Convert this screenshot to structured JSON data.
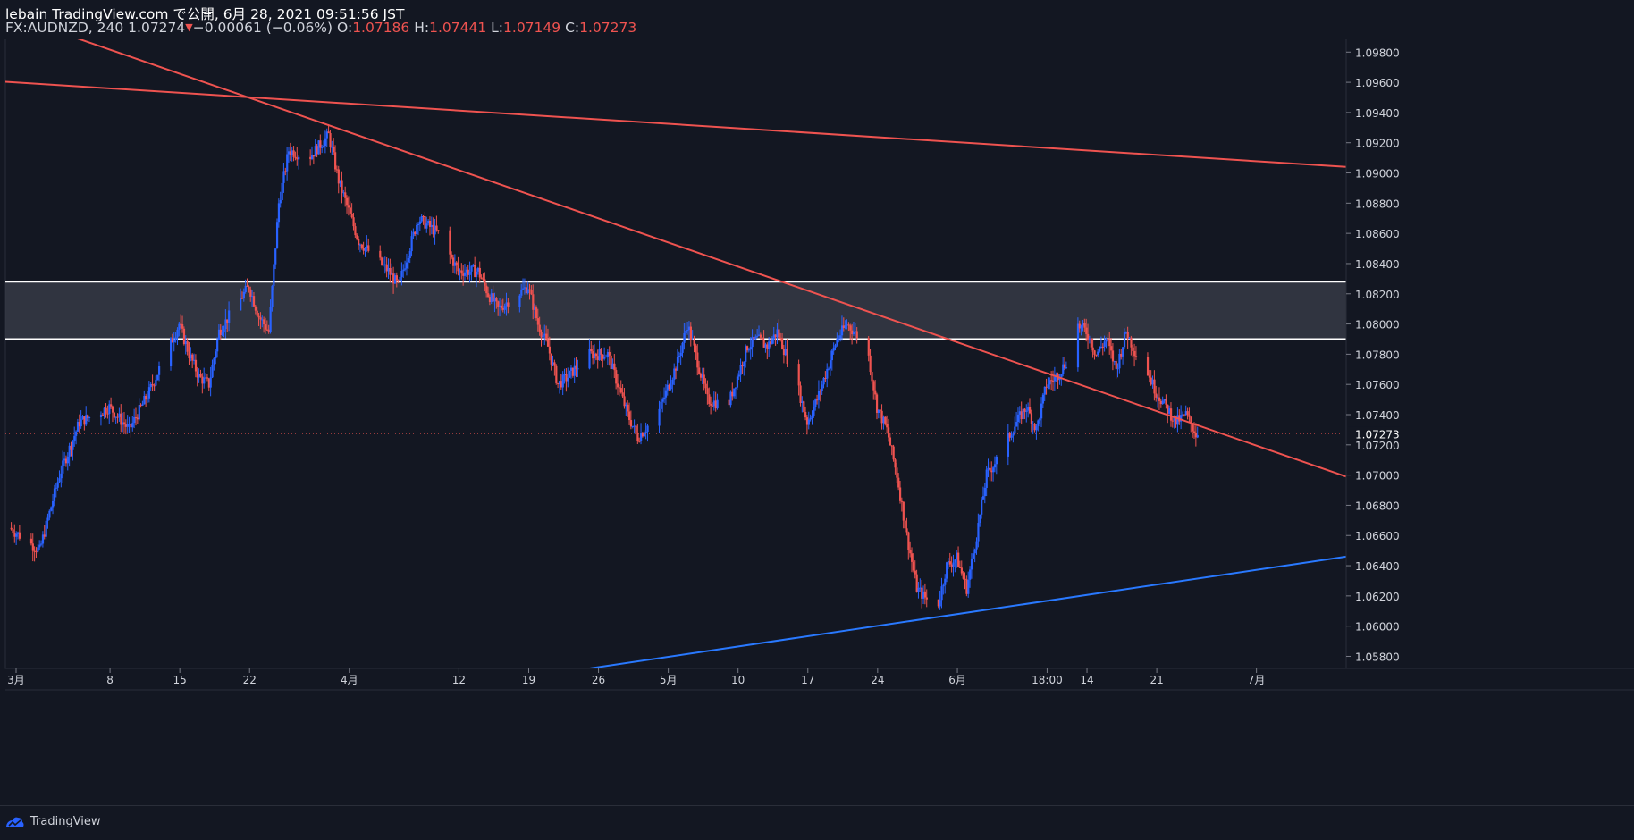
{
  "header": {
    "publish_line": "lebain TradingView.com で公開, 6月 28, 2021 09:51:56 JST",
    "symbol": "FX:AUDNZD, 240",
    "last": "1.07274",
    "arrow": "▼",
    "change": "−0.00061 (−0.06%)",
    "o_label": "O:",
    "o_val": "1.07186",
    "h_label": "H:",
    "h_val": "1.07441",
    "l_label": "L:",
    "l_val": "1.07149",
    "c_label": "C:",
    "c_val": "1.07273"
  },
  "footer": {
    "brand": "TradingView",
    "logo_icon": "tradingview-logo-icon"
  },
  "colors": {
    "background": "#131722",
    "bull": "#2962ff",
    "bear": "#ef5350",
    "zone_fill": "#363a45",
    "zone_line": "#ffffff",
    "trend_blue": "#2979ff",
    "trend_red": "#ef5350"
  },
  "chart_data": {
    "type": "candlestick",
    "symbol": "FX:AUDNZD",
    "interval": "240",
    "y_ticks": [
      "1.09800",
      "1.09600",
      "1.09400",
      "1.09200",
      "1.09000",
      "1.08800",
      "1.08600",
      "1.08400",
      "1.08200",
      "1.08000",
      "1.07800",
      "1.07600",
      "1.07400",
      "1.07200",
      "1.07000",
      "1.06800",
      "1.06600",
      "1.06400",
      "1.06200",
      "1.06000",
      "1.05800"
    ],
    "y_range": [
      1.0572,
      1.0992
    ],
    "x_ticks": [
      "3月",
      "8",
      "15",
      "22",
      "4月",
      "12",
      "19",
      "26",
      "5月",
      "10",
      "17",
      "24",
      "6月",
      "18:00",
      "14",
      "21",
      "7月"
    ],
    "last_price_label": "1.07273",
    "last_price": 1.07273,
    "zone": {
      "top": 1.0828,
      "bottom": 1.079
    },
    "trendlines": [
      {
        "color": "red",
        "from": {
          "date": "2021-02-24",
          "price": 1.0961
        },
        "to": {
          "date": "2021-07-10",
          "price": 1.0904
        }
      },
      {
        "color": "red",
        "from": {
          "date": "2021-03-03",
          "price": 1.0993
        },
        "to": {
          "date": "2021-07-10",
          "price": 1.0699
        }
      },
      {
        "color": "blue",
        "from": {
          "date": "2021-04-21",
          "price": 1.0568
        },
        "to": {
          "date": "2021-07-10",
          "price": 1.0646
        }
      }
    ],
    "price_path": [
      [
        "2021-02-26",
        1.0665
      ],
      [
        "2021-03-01",
        1.065
      ],
      [
        "2021-03-03",
        1.07
      ],
      [
        "2021-03-05",
        1.0735
      ],
      [
        "2021-03-08",
        1.0745
      ],
      [
        "2021-03-10",
        1.073
      ],
      [
        "2021-03-12",
        1.0755
      ],
      [
        "2021-03-15",
        1.08
      ],
      [
        "2021-03-16",
        1.078
      ],
      [
        "2021-03-17",
        1.0765
      ],
      [
        "2021-03-18",
        1.076
      ],
      [
        "2021-03-19",
        1.0795
      ],
      [
        "2021-03-22",
        1.0825
      ],
      [
        "2021-03-23",
        1.0805
      ],
      [
        "2021-03-24",
        1.0795
      ],
      [
        "2021-03-25",
        1.088
      ],
      [
        "2021-03-26",
        1.0915
      ],
      [
        "2021-03-28",
        1.091
      ],
      [
        "2021-03-30",
        1.0925
      ],
      [
        "2021-03-31",
        1.0895
      ],
      [
        "2021-04-01",
        1.0875
      ],
      [
        "2021-04-02",
        1.0855
      ],
      [
        "2021-04-05",
        1.0835
      ],
      [
        "2021-04-06",
        1.0825
      ],
      [
        "2021-04-08",
        1.087
      ],
      [
        "2021-04-10",
        1.086
      ],
      [
        "2021-04-12",
        1.0835
      ],
      [
        "2021-04-14",
        1.0835
      ],
      [
        "2021-04-15",
        1.082
      ],
      [
        "2021-04-16",
        1.081
      ],
      [
        "2021-04-19",
        1.0825
      ],
      [
        "2021-04-20",
        1.08
      ],
      [
        "2021-04-21",
        1.0785
      ],
      [
        "2021-04-22",
        1.076
      ],
      [
        "2021-04-23",
        1.0765
      ],
      [
        "2021-04-25",
        1.078
      ],
      [
        "2021-04-27",
        1.078
      ],
      [
        "2021-04-29",
        1.074
      ],
      [
        "2021-04-30",
        1.0725
      ],
      [
        "2021-05-02",
        1.074
      ],
      [
        "2021-05-04",
        1.0775
      ],
      [
        "2021-05-05",
        1.08
      ],
      [
        "2021-05-06",
        1.0775
      ],
      [
        "2021-05-07",
        1.075
      ],
      [
        "2021-05-09",
        1.0745
      ],
      [
        "2021-05-11",
        1.0785
      ],
      [
        "2021-05-12",
        1.079
      ],
      [
        "2021-05-13",
        1.0785
      ],
      [
        "2021-05-14",
        1.0795
      ],
      [
        "2021-05-16",
        1.076
      ],
      [
        "2021-05-17",
        1.0735
      ],
      [
        "2021-05-18",
        1.075
      ],
      [
        "2021-05-19",
        1.077
      ],
      [
        "2021-05-20",
        1.079
      ],
      [
        "2021-05-21",
        1.08
      ],
      [
        "2021-05-23",
        1.0785
      ],
      [
        "2021-05-24",
        1.0745
      ],
      [
        "2021-05-25",
        1.073
      ],
      [
        "2021-05-26",
        1.07
      ],
      [
        "2021-05-27",
        1.066
      ],
      [
        "2021-05-28",
        1.0625
      ],
      [
        "2021-05-30",
        1.061
      ],
      [
        "2021-05-31",
        1.064
      ],
      [
        "2021-06-01",
        1.0645
      ],
      [
        "2021-06-02",
        1.0625
      ],
      [
        "2021-06-03",
        1.066
      ],
      [
        "2021-06-04",
        1.07
      ],
      [
        "2021-06-05",
        1.071
      ],
      [
        "2021-06-07",
        1.0735
      ],
      [
        "2021-06-08",
        1.0745
      ],
      [
        "2021-06-09",
        1.073
      ],
      [
        "2021-06-10",
        1.076
      ],
      [
        "2021-06-11",
        1.0765
      ],
      [
        "2021-06-12",
        1.0775
      ],
      [
        "2021-06-13",
        1.08
      ],
      [
        "2021-06-14",
        1.0795
      ],
      [
        "2021-06-15",
        1.078
      ],
      [
        "2021-06-16",
        1.079
      ],
      [
        "2021-06-17",
        1.077
      ],
      [
        "2021-06-18",
        1.0795
      ],
      [
        "2021-06-19",
        1.078
      ],
      [
        "2021-06-20",
        1.077
      ],
      [
        "2021-06-21",
        1.0755
      ],
      [
        "2021-06-22",
        1.0745
      ],
      [
        "2021-06-23",
        1.0735
      ],
      [
        "2021-06-24",
        1.074
      ],
      [
        "2021-06-25",
        1.07273
      ]
    ]
  }
}
